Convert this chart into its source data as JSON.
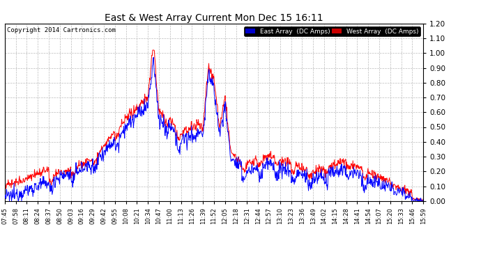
{
  "title": "East & West Array Current Mon Dec 15 16:11",
  "copyright": "Copyright 2014 Cartronics.com",
  "legend_east": "East Array  (DC Amps)",
  "legend_west": "West Array  (DC Amps)",
  "east_color": "#0000ff",
  "west_color": "#ff0000",
  "legend_east_bg": "#0000cc",
  "legend_west_bg": "#cc0000",
  "background_color": "#ffffff",
  "grid_color": "#bbbbbb",
  "ylim": [
    0.0,
    1.2
  ],
  "yticks": [
    0.0,
    0.1,
    0.2,
    0.3,
    0.4,
    0.5,
    0.6,
    0.7,
    0.8,
    0.9,
    1.0,
    1.1,
    1.2
  ],
  "xtick_labels": [
    "07:45",
    "07:58",
    "08:11",
    "08:24",
    "08:37",
    "08:50",
    "09:03",
    "09:16",
    "09:29",
    "09:42",
    "09:55",
    "10:08",
    "10:21",
    "10:34",
    "10:47",
    "11:00",
    "11:13",
    "11:26",
    "11:39",
    "11:52",
    "12:05",
    "12:18",
    "12:31",
    "12:44",
    "12:57",
    "13:10",
    "13:23",
    "13:36",
    "13:49",
    "14:02",
    "14:15",
    "14:28",
    "14:41",
    "14:54",
    "15:07",
    "15:20",
    "15:33",
    "15:46",
    "15:59"
  ]
}
